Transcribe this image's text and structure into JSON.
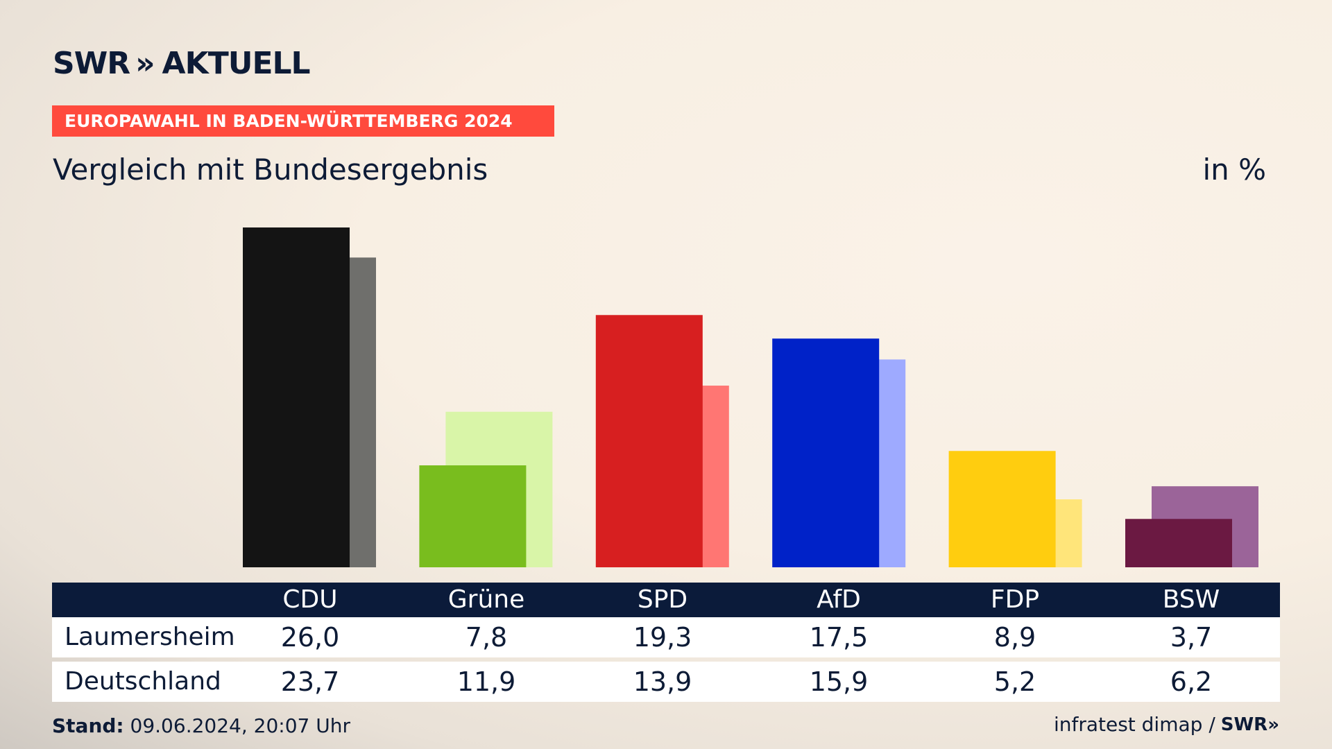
{
  "header": {
    "logo_text": "SWR",
    "logo_chevrons": "»",
    "logo_suffix": "AKTUELL",
    "banner": "EUROPAWAHL IN BADEN-WÜRTTEMBERG 2024",
    "subtitle": "Vergleich mit Bundesergebnis",
    "unit": "in %"
  },
  "table": {
    "rows": [
      {
        "label": "Laumersheim",
        "values": [
          "26,0",
          "7,8",
          "19,3",
          "17,5",
          "8,9",
          "3,7"
        ]
      },
      {
        "label": "Deutschland",
        "values": [
          "23,7",
          "11,9",
          "13,9",
          "15,9",
          "5,2",
          "6,2"
        ]
      }
    ]
  },
  "footer": {
    "stand_label": "Stand:",
    "stand_value": "09.06.2024, 20:07 Uhr",
    "source": "infratest dimap /",
    "source_logo": "SWR»"
  },
  "chart_data": {
    "type": "bar",
    "categories": [
      "CDU",
      "Grüne",
      "SPD",
      "AfD",
      "FDP",
      "BSW"
    ],
    "series": [
      {
        "name": "Laumersheim",
        "values": [
          26.0,
          7.8,
          19.3,
          17.5,
          8.9,
          3.7
        ]
      },
      {
        "name": "Deutschland",
        "values": [
          23.7,
          11.9,
          13.9,
          15.9,
          5.2,
          6.2
        ]
      }
    ],
    "colors": {
      "primary": [
        "#141414",
        "#79bd1e",
        "#d71f20",
        "#0022c8",
        "#ffcd0f",
        "#6b1942"
      ],
      "secondary": [
        "#6f6f6c",
        "#d9f5a8",
        "#ff7673",
        "#9eaaff",
        "#ffe57a",
        "#9b6499"
      ]
    },
    "ylim": [
      0,
      26.0
    ]
  }
}
